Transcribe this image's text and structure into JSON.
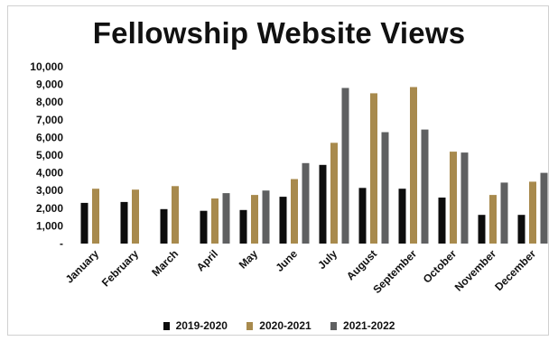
{
  "chart_data": {
    "type": "bar",
    "title": "Fellowship Website Views",
    "categories": [
      "January",
      "February",
      "March",
      "April",
      "May",
      "June",
      "July",
      "August",
      "September",
      "October",
      "November",
      "December"
    ],
    "series": [
      {
        "name": "2019-2020",
        "color": "#0d0d0d",
        "values": [
          2300,
          2350,
          1950,
          1850,
          1900,
          2650,
          4450,
          3150,
          3100,
          2600,
          1620,
          1620
        ]
      },
      {
        "name": "2020-2021",
        "color": "#a88a4d",
        "values": [
          3100,
          3050,
          3250,
          2550,
          2750,
          3650,
          5700,
          8500,
          8850,
          5200,
          2750,
          3500
        ]
      },
      {
        "name": "2021-2022",
        "color": "#5f6061",
        "values": [
          null,
          null,
          null,
          2850,
          3000,
          4550,
          8800,
          6300,
          6450,
          5150,
          3450,
          4000
        ]
      }
    ],
    "ylim": [
      0,
      10000
    ],
    "yticks": [
      "-",
      "1,000",
      "2,000",
      "3,000",
      "4,000",
      "5,000",
      "6,000",
      "7,000",
      "8,000",
      "9,000",
      "10,000"
    ],
    "ytick_values": [
      0,
      1000,
      2000,
      3000,
      4000,
      5000,
      6000,
      7000,
      8000,
      9000,
      10000
    ],
    "grid": false,
    "legend_position": "bottom",
    "xlabel": "",
    "ylabel": ""
  }
}
